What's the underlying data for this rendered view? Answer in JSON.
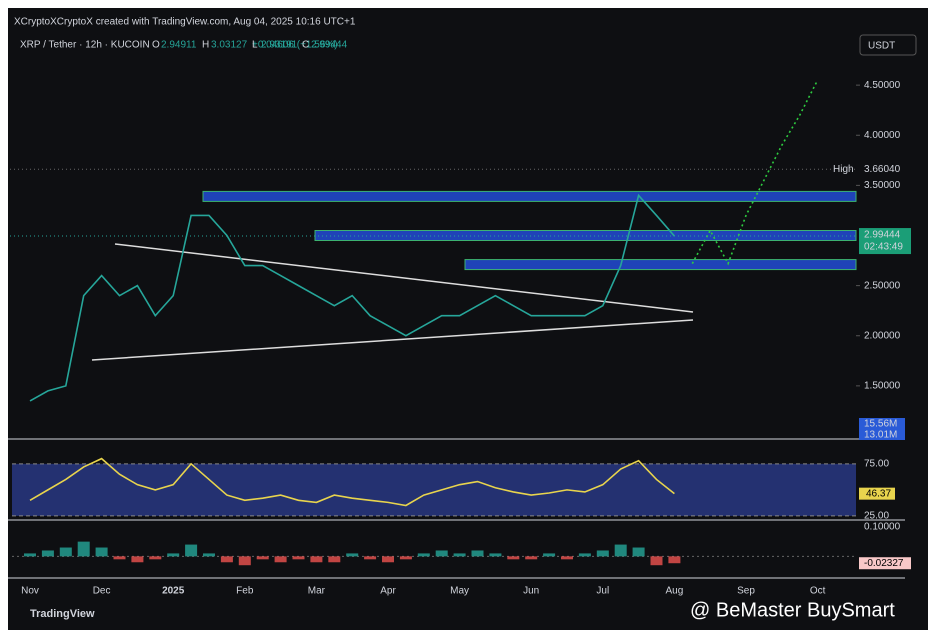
{
  "header": {
    "credit": "XCryptoXCryptoX created with TradingView.com, Aug 04, 2025 10:16 UTC+1",
    "symbol": "XRP / Tether · 12h · KUCOIN",
    "ohlc": [
      {
        "label": "O",
        "value": 2.94911
      },
      {
        "label": "H",
        "value": 3.03127
      },
      {
        "label": "L",
        "value": 2.93191
      },
      {
        "label": "C",
        "value": 2.99444
      }
    ],
    "change": "+0.04606 (+1.56%)",
    "currency": "USDT"
  },
  "chart_data": {
    "type": "line",
    "categories": [
      "Nov",
      null,
      null,
      null,
      "Dec",
      null,
      null,
      null,
      "2025",
      null,
      null,
      null,
      "Feb",
      null,
      null,
      null,
      "Mar",
      null,
      null,
      null,
      "Apr",
      null,
      null,
      null,
      "May",
      null,
      null,
      null,
      "Jun",
      null,
      null,
      null,
      "Jul",
      null,
      null,
      null,
      "Aug",
      null,
      null,
      null,
      "Sep",
      null,
      null,
      null,
      "Oct",
      null,
      null
    ],
    "series": [
      {
        "color": "#26a69a",
        "values": [
          1.35,
          1.45,
          1.5,
          2.4,
          2.6,
          2.4,
          2.5,
          2.2,
          2.4,
          3.2,
          3.2,
          3.0,
          2.7,
          2.7,
          2.6,
          2.5,
          2.4,
          2.3,
          2.4,
          2.2,
          2.1,
          2.0,
          2.1,
          2.2,
          2.2,
          2.3,
          2.4,
          2.3,
          2.2,
          2.2,
          2.2,
          2.2,
          2.3,
          2.7,
          3.4,
          3.2,
          2.99444,
          null,
          null,
          null,
          null,
          null,
          null,
          null,
          null,
          null,
          null
        ]
      },
      {
        "color": "#2ecc40",
        "style": "dotted",
        "values": [
          null,
          null,
          null,
          null,
          null,
          null,
          null,
          null,
          null,
          null,
          null,
          null,
          null,
          null,
          null,
          null,
          null,
          null,
          null,
          null,
          null,
          null,
          null,
          null,
          null,
          null,
          null,
          null,
          null,
          null,
          null,
          null,
          null,
          null,
          null,
          null,
          null,
          2.72,
          3.05,
          2.72,
          3.2,
          3.55,
          3.9,
          4.2,
          4.55,
          null,
          null
        ]
      }
    ],
    "levels": [
      3.39,
      3.0,
      2.71
    ],
    "ylim": [
      0.98,
      5.05
    ],
    "yticks": [
      {
        "value": 1.5,
        "label": "1.50000"
      },
      {
        "value": 2,
        "label": "2.00000"
      },
      {
        "value": 2.5,
        "label": "2.50000"
      },
      {
        "value": 3.5,
        "label": "3.50000"
      },
      {
        "value": 4,
        "label": "4.00000"
      },
      {
        "value": 4.5,
        "label": "4.50000"
      }
    ],
    "high": {
      "label": "High",
      "value": 3.6604,
      "value_label": "3.66040"
    },
    "countdown": "02:43:49",
    "volume_labels": [
      "15.56M",
      "13.01M"
    ],
    "rsi": {
      "color": "#e8d44d",
      "ylim": [
        23,
        95
      ],
      "yticks": [
        {
          "value": 25,
          "label": "25.00"
        },
        {
          "value": 75,
          "label": "75.00"
        }
      ],
      "values": [
        40,
        50,
        60,
        72,
        80,
        65,
        55,
        50,
        55,
        75,
        60,
        45,
        40,
        42,
        45,
        40,
        38,
        45,
        42,
        40,
        38,
        35,
        45,
        50,
        55,
        58,
        52,
        48,
        45,
        47,
        50,
        48,
        55,
        70,
        78,
        60,
        46.37,
        null,
        null,
        null,
        null,
        null,
        null,
        null,
        null,
        null,
        null
      ]
    },
    "macd": {
      "ylim": [
        -0.07,
        0.12
      ],
      "yticks": [
        {
          "value": 0.1,
          "label": "0.10000"
        }
      ],
      "values": [
        0.01,
        0.02,
        0.03,
        0.05,
        0.03,
        -0.01,
        -0.02,
        -0.01,
        0.01,
        0.04,
        0.01,
        -0.02,
        -0.03,
        -0.01,
        -0.02,
        -0.01,
        -0.02,
        -0.02,
        0.01,
        -0.01,
        -0.02,
        -0.01,
        0.01,
        0.02,
        0.01,
        0.02,
        0.01,
        -0.01,
        -0.01,
        0.01,
        -0.01,
        0.01,
        0.02,
        0.04,
        0.03,
        -0.03,
        -0.02327,
        null,
        null,
        null,
        null,
        null,
        null,
        null,
        null,
        null,
        null
      ]
    }
  },
  "footer": {
    "brand": "TradingView",
    "watermark": "@ BeMaster BuySmart"
  }
}
